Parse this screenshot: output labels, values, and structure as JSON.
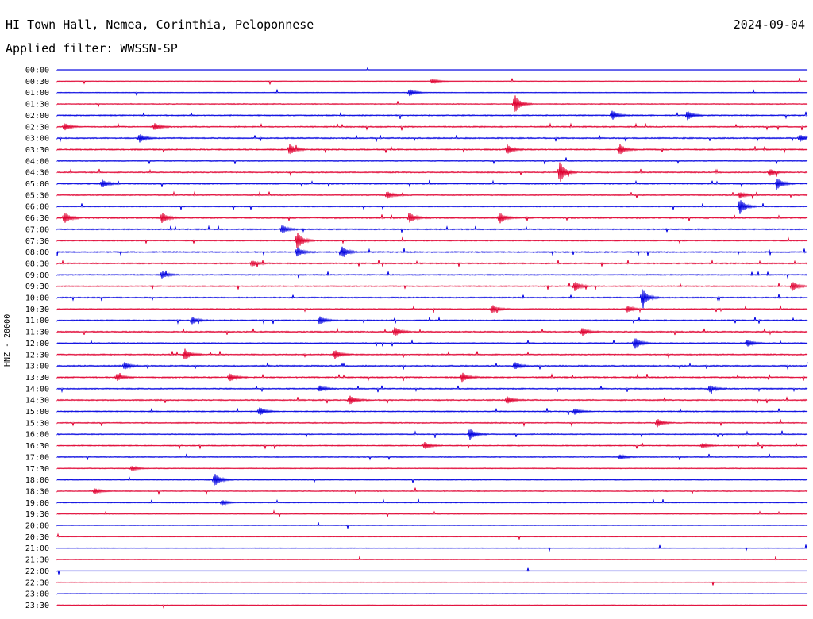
{
  "header": {
    "station": "HI Town Hall, Nemea, Corinthia, Peloponnese",
    "date": "2024-09-04",
    "filter": "Applied filter: WWSSN-SP"
  },
  "chart_data": {
    "type": "line",
    "ylabel": "HNZ - 20000",
    "trace_colors": [
      "#0000e0",
      "#e00030"
    ],
    "rows": [
      "00:00",
      "00:30",
      "01:00",
      "01:30",
      "02:00",
      "02:30",
      "03:00",
      "03:30",
      "04:00",
      "04:30",
      "05:00",
      "05:30",
      "06:00",
      "06:30",
      "07:00",
      "07:30",
      "08:00",
      "08:30",
      "09:00",
      "09:30",
      "10:00",
      "10:30",
      "11:00",
      "11:30",
      "12:00",
      "12:30",
      "13:00",
      "13:30",
      "14:00",
      "14:30",
      "15:00",
      "15:30",
      "16:00",
      "16:30",
      "17:00",
      "17:30",
      "18:00",
      "18:30",
      "19:00",
      "19:30",
      "20:00",
      "20:30",
      "21:00",
      "21:30",
      "22:00",
      "22:30",
      "23:00",
      "23:30"
    ],
    "activity": [
      0.05,
      0.15,
      0.2,
      0.3,
      0.5,
      0.55,
      0.55,
      0.6,
      0.45,
      0.55,
      0.6,
      0.5,
      0.4,
      0.75,
      0.55,
      0.5,
      0.6,
      0.55,
      0.5,
      0.5,
      0.55,
      0.5,
      0.6,
      0.6,
      0.5,
      0.55,
      0.6,
      0.6,
      0.55,
      0.55,
      0.45,
      0.45,
      0.45,
      0.4,
      0.35,
      0.3,
      0.35,
      0.3,
      0.3,
      0.2,
      0.2,
      0.15,
      0.15,
      0.15,
      0.05,
      0.1,
      0.15,
      0.2
    ],
    "events": [
      {
        "row": 1,
        "t": 0.5,
        "a": 0.4
      },
      {
        "row": 2,
        "t": 0.47,
        "a": 0.6
      },
      {
        "row": 3,
        "t": 0.61,
        "a": 1.6
      },
      {
        "row": 4,
        "t": 0.74,
        "a": 0.8
      },
      {
        "row": 4,
        "t": 0.84,
        "a": 0.8
      },
      {
        "row": 5,
        "t": 0.01,
        "a": 0.6
      },
      {
        "row": 5,
        "t": 0.13,
        "a": 0.6
      },
      {
        "row": 6,
        "t": 0.11,
        "a": 0.7
      },
      {
        "row": 6,
        "t": 0.99,
        "a": 0.6
      },
      {
        "row": 7,
        "t": 0.31,
        "a": 0.9
      },
      {
        "row": 7,
        "t": 0.6,
        "a": 0.8
      },
      {
        "row": 7,
        "t": 0.75,
        "a": 0.9
      },
      {
        "row": 9,
        "t": 0.67,
        "a": 1.8
      },
      {
        "row": 9,
        "t": 0.95,
        "a": 0.6
      },
      {
        "row": 10,
        "t": 0.06,
        "a": 0.7
      },
      {
        "row": 10,
        "t": 0.96,
        "a": 0.9
      },
      {
        "row": 11,
        "t": 0.44,
        "a": 0.6
      },
      {
        "row": 11,
        "t": 0.91,
        "a": 0.5
      },
      {
        "row": 12,
        "t": 0.91,
        "a": 1.3
      },
      {
        "row": 13,
        "t": 0.01,
        "a": 0.9
      },
      {
        "row": 13,
        "t": 0.14,
        "a": 0.9
      },
      {
        "row": 13,
        "t": 0.47,
        "a": 0.8
      },
      {
        "row": 13,
        "t": 0.59,
        "a": 0.9
      },
      {
        "row": 14,
        "t": 0.3,
        "a": 0.7
      },
      {
        "row": 15,
        "t": 0.32,
        "a": 1.5
      },
      {
        "row": 16,
        "t": 0.38,
        "a": 0.9
      },
      {
        "row": 16,
        "t": 0.32,
        "a": 0.8
      },
      {
        "row": 17,
        "t": 0.26,
        "a": 0.5
      },
      {
        "row": 18,
        "t": 0.14,
        "a": 0.6
      },
      {
        "row": 19,
        "t": 0.69,
        "a": 0.8
      },
      {
        "row": 19,
        "t": 0.98,
        "a": 0.8
      },
      {
        "row": 20,
        "t": 0.78,
        "a": 1.5
      },
      {
        "row": 21,
        "t": 0.58,
        "a": 0.7
      },
      {
        "row": 21,
        "t": 0.76,
        "a": 0.6
      },
      {
        "row": 22,
        "t": 0.18,
        "a": 0.6
      },
      {
        "row": 22,
        "t": 0.35,
        "a": 0.7
      },
      {
        "row": 23,
        "t": 0.45,
        "a": 0.8
      },
      {
        "row": 23,
        "t": 0.7,
        "a": 0.7
      },
      {
        "row": 24,
        "t": 0.77,
        "a": 1.0
      },
      {
        "row": 24,
        "t": 0.92,
        "a": 0.6
      },
      {
        "row": 25,
        "t": 0.17,
        "a": 1.0
      },
      {
        "row": 25,
        "t": 0.37,
        "a": 0.8
      },
      {
        "row": 26,
        "t": 0.09,
        "a": 0.6
      },
      {
        "row": 26,
        "t": 0.61,
        "a": 0.6
      },
      {
        "row": 27,
        "t": 0.08,
        "a": 0.6
      },
      {
        "row": 27,
        "t": 0.23,
        "a": 0.7
      },
      {
        "row": 27,
        "t": 0.54,
        "a": 0.8
      },
      {
        "row": 28,
        "t": 0.35,
        "a": 0.5
      },
      {
        "row": 28,
        "t": 0.87,
        "a": 0.6
      },
      {
        "row": 29,
        "t": 0.39,
        "a": 0.8
      },
      {
        "row": 29,
        "t": 0.6,
        "a": 0.6
      },
      {
        "row": 30,
        "t": 0.27,
        "a": 0.7
      },
      {
        "row": 30,
        "t": 0.69,
        "a": 0.5
      },
      {
        "row": 31,
        "t": 0.8,
        "a": 0.7
      },
      {
        "row": 32,
        "t": 0.55,
        "a": 1.0
      },
      {
        "row": 33,
        "t": 0.49,
        "a": 0.6
      },
      {
        "row": 33,
        "t": 0.86,
        "a": 0.4
      },
      {
        "row": 34,
        "t": 0.75,
        "a": 0.4
      },
      {
        "row": 35,
        "t": 0.1,
        "a": 0.4
      },
      {
        "row": 36,
        "t": 0.21,
        "a": 1.1
      },
      {
        "row": 37,
        "t": 0.05,
        "a": 0.5
      },
      {
        "row": 38,
        "t": 0.22,
        "a": 0.4
      }
    ]
  }
}
